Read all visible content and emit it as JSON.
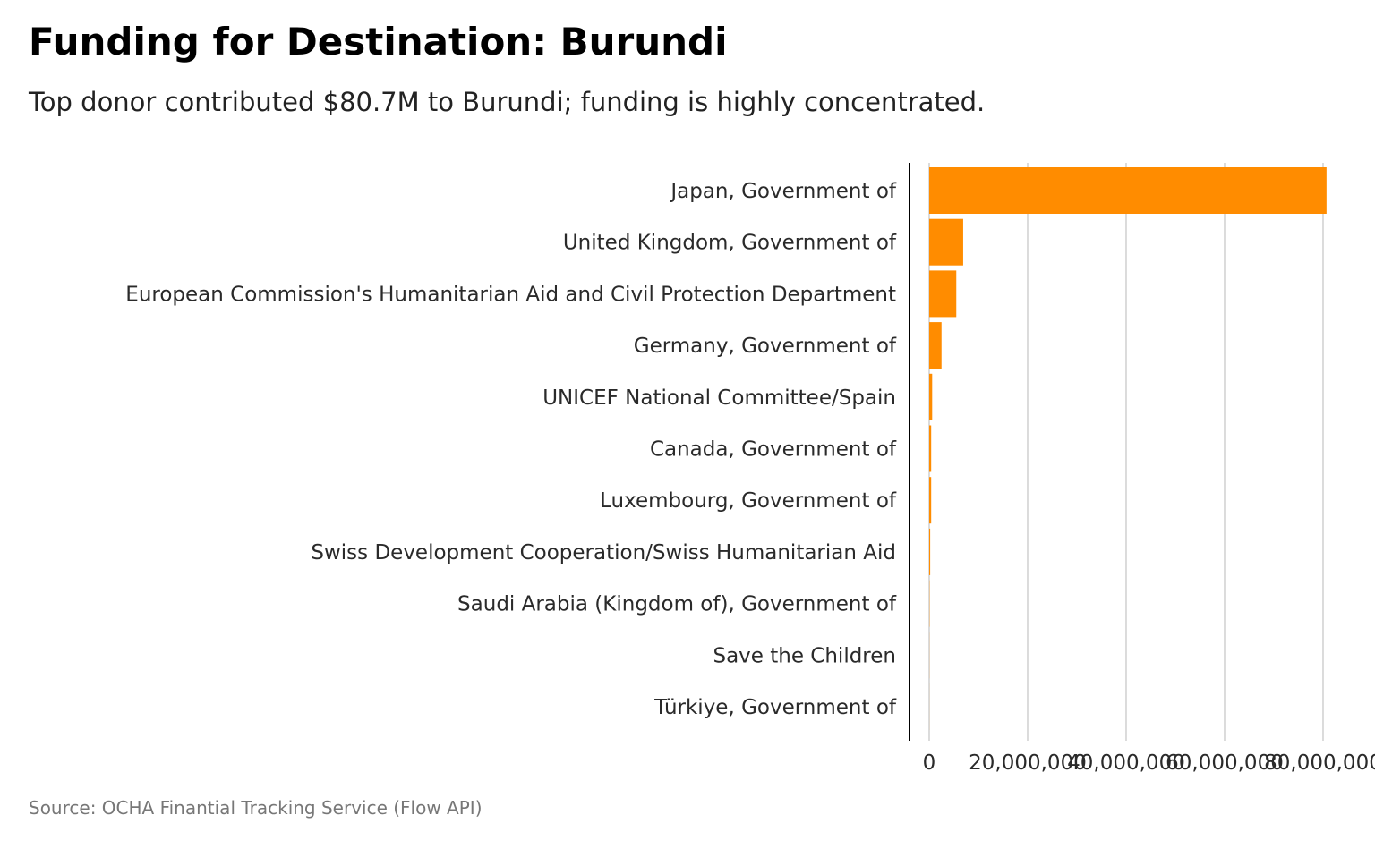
{
  "title": "Funding for Destination: Burundi",
  "subtitle": "Top donor contributed $80.7M to Burundi; funding is highly concentrated.",
  "caption": "Source: OCHA Finantial Tracking Service (Flow API)",
  "colors": {
    "bar": "#FF8C00",
    "grid": "#c8c8c8",
    "axis": "#000000",
    "text": "#2a2a2a"
  },
  "chart_data": {
    "type": "bar",
    "orientation": "horizontal",
    "categories": [
      "Japan, Government of",
      "United Kingdom, Government of",
      "European Commission's Humanitarian Aid and Civil Protection Department",
      "Germany, Government of",
      "UNICEF National Committee/Spain",
      "Canada, Government of",
      "Luxembourg, Government of",
      "Swiss Development Cooperation/Swiss Humanitarian Aid",
      "Saudi Arabia (Kingdom of), Government of",
      "Save the Children",
      "Türkiye, Government of"
    ],
    "values": [
      80700000,
      6900000,
      5500000,
      2500000,
      600000,
      400000,
      400000,
      200000,
      50000,
      20000,
      10000
    ],
    "xlim": [
      0,
      85000000
    ],
    "xticks": [
      0,
      20000000,
      40000000,
      60000000,
      80000000
    ],
    "xtick_labels": [
      "0",
      "20,000,000",
      "40,000,000",
      "60,000,000",
      "80,000,000"
    ],
    "grid": "vertical"
  }
}
